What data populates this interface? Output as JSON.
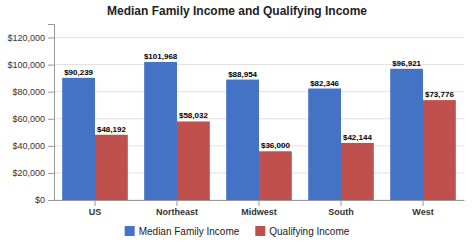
{
  "chart_data": {
    "type": "bar",
    "title": "Median Family Income and Qualifying Income",
    "categories": [
      "US",
      "Northeast",
      "Midwest",
      "South",
      "West"
    ],
    "series": [
      {
        "name": "Median Family Income",
        "color": "#4472C4",
        "values": [
          90239,
          101968,
          88954,
          82346,
          96921
        ],
        "value_labels": [
          "$90,239",
          "$101,968",
          "$88,954",
          "$82,346",
          "$96,921"
        ]
      },
      {
        "name": "Qualifying Income",
        "color": "#C0504D",
        "values": [
          48192,
          58032,
          36000,
          42144,
          73776
        ],
        "value_labels": [
          "$48,192",
          "$58,032",
          "$36,000",
          "$42,144",
          "$73,776"
        ]
      }
    ],
    "ylim": [
      0,
      130000
    ],
    "yticks": [
      {
        "value": 0,
        "label": "$0"
      },
      {
        "value": 20000,
        "label": "$20,000"
      },
      {
        "value": 40000,
        "label": "$40,000"
      },
      {
        "value": 60000,
        "label": "$60,000"
      },
      {
        "value": 80000,
        "label": "$80,000"
      },
      {
        "value": 100000,
        "label": "$100,000"
      },
      {
        "value": 120000,
        "label": "$120,000"
      }
    ],
    "grid": true,
    "data_labels": true,
    "legend": "bottom"
  }
}
